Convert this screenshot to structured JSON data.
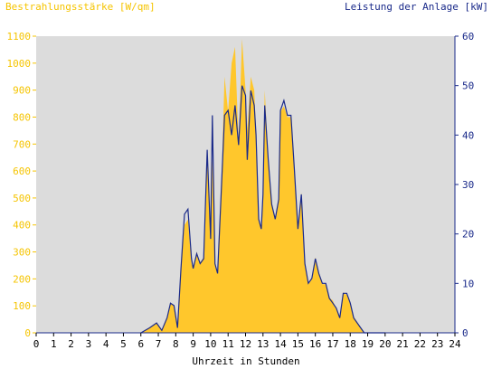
{
  "chart_data": {
    "type": "area",
    "title": "",
    "xlabel": "Uhrzeit in Stunden",
    "ylabel_left": "Bestrahlungsstärke [W/qm]",
    "ylabel_right": "Leistung der Anlage [kW]",
    "x_ticks": [
      "0",
      "1",
      "2",
      "3",
      "4",
      "5",
      "6",
      "7",
      "8",
      "9",
      "10",
      "11",
      "12",
      "13",
      "14",
      "15",
      "16",
      "17",
      "18",
      "19",
      "20",
      "21",
      "22",
      "23",
      "24"
    ],
    "y_left_ticks": [
      "0",
      "100",
      "200",
      "300",
      "400",
      "500",
      "600",
      "700",
      "800",
      "900",
      "1000",
      "1100"
    ],
    "y_right_ticks": [
      "0",
      "10",
      "20",
      "30",
      "40",
      "50",
      "60"
    ],
    "xlim": [
      0,
      24
    ],
    "ylim_left": [
      0,
      1100
    ],
    "ylim_right": [
      0,
      60
    ],
    "grid": false,
    "colors": {
      "irradiance": "#ffc72c",
      "power": "#1a2a8a",
      "plot_bg": "#dcdcdc"
    },
    "series": [
      {
        "axis": "left",
        "style": "area",
        "x": [
          6.0,
          6.5,
          6.9,
          7.2,
          7.5,
          7.7,
          7.9,
          8.1,
          8.3,
          8.5,
          8.7,
          8.9,
          9.0,
          9.2,
          9.4,
          9.6,
          9.8,
          10.0,
          10.1,
          10.25,
          10.4,
          10.6,
          10.8,
          11.0,
          11.2,
          11.4,
          11.6,
          11.8,
          12.0,
          12.1,
          12.3,
          12.5,
          12.6,
          12.75,
          12.9,
          13.0,
          13.1,
          13.3,
          13.5,
          13.7,
          13.9,
          14.0,
          14.2,
          14.4,
          14.6,
          14.8,
          15.0,
          15.2,
          15.4,
          15.6,
          15.8,
          16.0,
          16.2,
          16.4,
          16.6,
          16.8,
          17.0,
          17.2,
          17.4,
          17.6,
          17.8,
          18.0,
          18.2,
          18.4,
          18.6,
          18.8,
          19.0,
          19.2,
          19.4,
          19.7,
          20.0
        ],
        "values": [
          0,
          20,
          35,
          10,
          60,
          110,
          100,
          30,
          250,
          400,
          420,
          260,
          240,
          300,
          260,
          280,
          650,
          350,
          650,
          250,
          220,
          520,
          950,
          820,
          1000,
          1060,
          700,
          1090,
          900,
          750,
          950,
          900,
          750,
          420,
          380,
          500,
          900,
          650,
          480,
          420,
          500,
          820,
          840,
          800,
          800,
          600,
          380,
          520,
          250,
          180,
          200,
          280,
          220,
          180,
          180,
          130,
          120,
          90,
          60,
          150,
          140,
          110,
          60,
          40,
          20,
          0,
          0,
          0,
          0,
          0,
          0
        ]
      },
      {
        "axis": "right",
        "style": "line",
        "x": [
          6.0,
          6.5,
          6.9,
          7.2,
          7.5,
          7.7,
          7.9,
          8.1,
          8.3,
          8.5,
          8.7,
          8.9,
          9.0,
          9.2,
          9.4,
          9.6,
          9.8,
          10.0,
          10.1,
          10.25,
          10.4,
          10.6,
          10.8,
          11.0,
          11.2,
          11.4,
          11.6,
          11.8,
          12.0,
          12.1,
          12.3,
          12.5,
          12.6,
          12.75,
          12.9,
          13.0,
          13.1,
          13.3,
          13.5,
          13.7,
          13.9,
          14.0,
          14.2,
          14.4,
          14.6,
          14.8,
          15.0,
          15.2,
          15.4,
          15.6,
          15.8,
          16.0,
          16.2,
          16.4,
          16.6,
          16.8,
          17.0,
          17.2,
          17.4,
          17.6,
          17.8,
          18.0,
          18.2,
          18.4,
          18.6,
          18.8,
          19.0,
          19.2,
          19.4,
          19.7,
          20.0
        ],
        "values": [
          0,
          1,
          2,
          0.5,
          3,
          6,
          5.5,
          1,
          13,
          24,
          25,
          15,
          13,
          16,
          14,
          15,
          37,
          19,
          44,
          14,
          12,
          28,
          44,
          45,
          40,
          46,
          38,
          50,
          48,
          35,
          49,
          46,
          40,
          23,
          21,
          28,
          46,
          35,
          26,
          23,
          27,
          45,
          47,
          44,
          44,
          33,
          21,
          28,
          14,
          10,
          11,
          15,
          12,
          10,
          10,
          7,
          6,
          5,
          3,
          8,
          8,
          6,
          3,
          2,
          1,
          0,
          0,
          0,
          0,
          0,
          0
        ]
      }
    ]
  }
}
